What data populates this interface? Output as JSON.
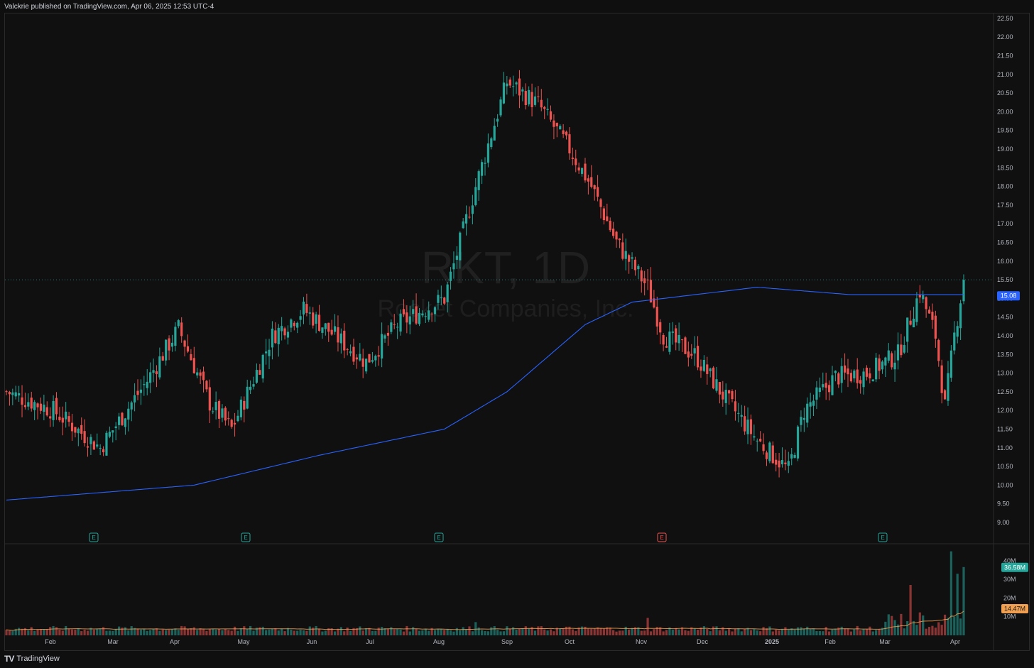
{
  "header": {
    "published_text": "Valckrie published on TradingView.com, Apr 06, 2025 12:53 UTC-4"
  },
  "footer": {
    "logo_mark": "TV",
    "brand": "TradingView"
  },
  "watermark": {
    "ticker": "RKT, 1D",
    "company": "Rocket Companies, Inc."
  },
  "colors": {
    "up": "#26a69a",
    "down": "#ef5350",
    "ma": "#2962ff",
    "vol_ma": "#f0a050",
    "last_price_line": "#26a69a"
  },
  "chart_data": [
    {
      "type": "candlestick",
      "symbol": "RKT",
      "interval": "1D",
      "y_axis": {
        "range": [
          9.0,
          22.5
        ],
        "ticks": [
          "9.00",
          "9.50",
          "10.00",
          "10.50",
          "11.00",
          "11.50",
          "12.00",
          "12.50",
          "13.00",
          "13.50",
          "14.00",
          "14.50",
          "15.00",
          "15.50",
          "16.00",
          "16.50",
          "17.00",
          "17.50",
          "18.00",
          "18.50",
          "19.00",
          "19.50",
          "20.00",
          "20.50",
          "21.00",
          "21.50",
          "22.00",
          "22.50"
        ]
      },
      "x_axis": {
        "ticks": [
          "Feb",
          "Mar",
          "Apr",
          "May",
          "Jun",
          "Jul",
          "Aug",
          "Sep",
          "Oct",
          "Nov",
          "Dec",
          "2025",
          "Feb",
          "Mar",
          "Apr"
        ]
      },
      "moving_average": {
        "current_value": "15.08",
        "approx_path": [
          [
            0,
            9.6
          ],
          [
            60,
            10.0
          ],
          [
            100,
            10.8
          ],
          [
            140,
            11.5
          ],
          [
            160,
            12.5
          ],
          [
            185,
            14.3
          ],
          [
            200,
            14.9
          ],
          [
            240,
            15.3
          ],
          [
            270,
            15.1
          ],
          [
            306,
            15.1
          ]
        ]
      },
      "price_anchors": [
        [
          0,
          12.5
        ],
        [
          15,
          12.0
        ],
        [
          30,
          11.0
        ],
        [
          45,
          12.8
        ],
        [
          55,
          14.2
        ],
        [
          65,
          12.2
        ],
        [
          72,
          11.5
        ],
        [
          85,
          14.0
        ],
        [
          95,
          14.7
        ],
        [
          105,
          14.0
        ],
        [
          115,
          13.3
        ],
        [
          125,
          14.3
        ],
        [
          140,
          15.0
        ],
        [
          150,
          18.0
        ],
        [
          160,
          20.8
        ],
        [
          170,
          20.2
        ],
        [
          180,
          19.0
        ],
        [
          187,
          18.0
        ],
        [
          195,
          16.5
        ],
        [
          205,
          15.3
        ],
        [
          210,
          14.0
        ],
        [
          220,
          13.5
        ],
        [
          230,
          12.3
        ],
        [
          240,
          11.2
        ],
        [
          250,
          10.4
        ],
        [
          255,
          12.0
        ],
        [
          265,
          12.9
        ],
        [
          275,
          13.0
        ],
        [
          285,
          13.5
        ],
        [
          292,
          15.2
        ],
        [
          297,
          14.0
        ],
        [
          300,
          12.1
        ],
        [
          303,
          14.0
        ],
        [
          306,
          15.5
        ]
      ],
      "last_price": 15.5,
      "earnings_markers": [
        {
          "label": "E",
          "type": "positive"
        },
        {
          "label": "E",
          "type": "positive"
        },
        {
          "label": "E",
          "type": "positive"
        },
        {
          "label": "E",
          "type": "negative"
        },
        {
          "label": "E",
          "type": "positive"
        }
      ]
    },
    {
      "type": "bar",
      "name": "Volume",
      "y_axis": {
        "range": [
          0,
          45
        ],
        "ticks": [
          "10M",
          "20M",
          "30M",
          "40M"
        ]
      },
      "current_volume": "36.58M",
      "volume_ma": "14.47M",
      "notable_bars_millions": [
        [
          289,
          27
        ],
        [
          302,
          45
        ],
        [
          304,
          33
        ],
        [
          306,
          36.58
        ]
      ]
    }
  ]
}
